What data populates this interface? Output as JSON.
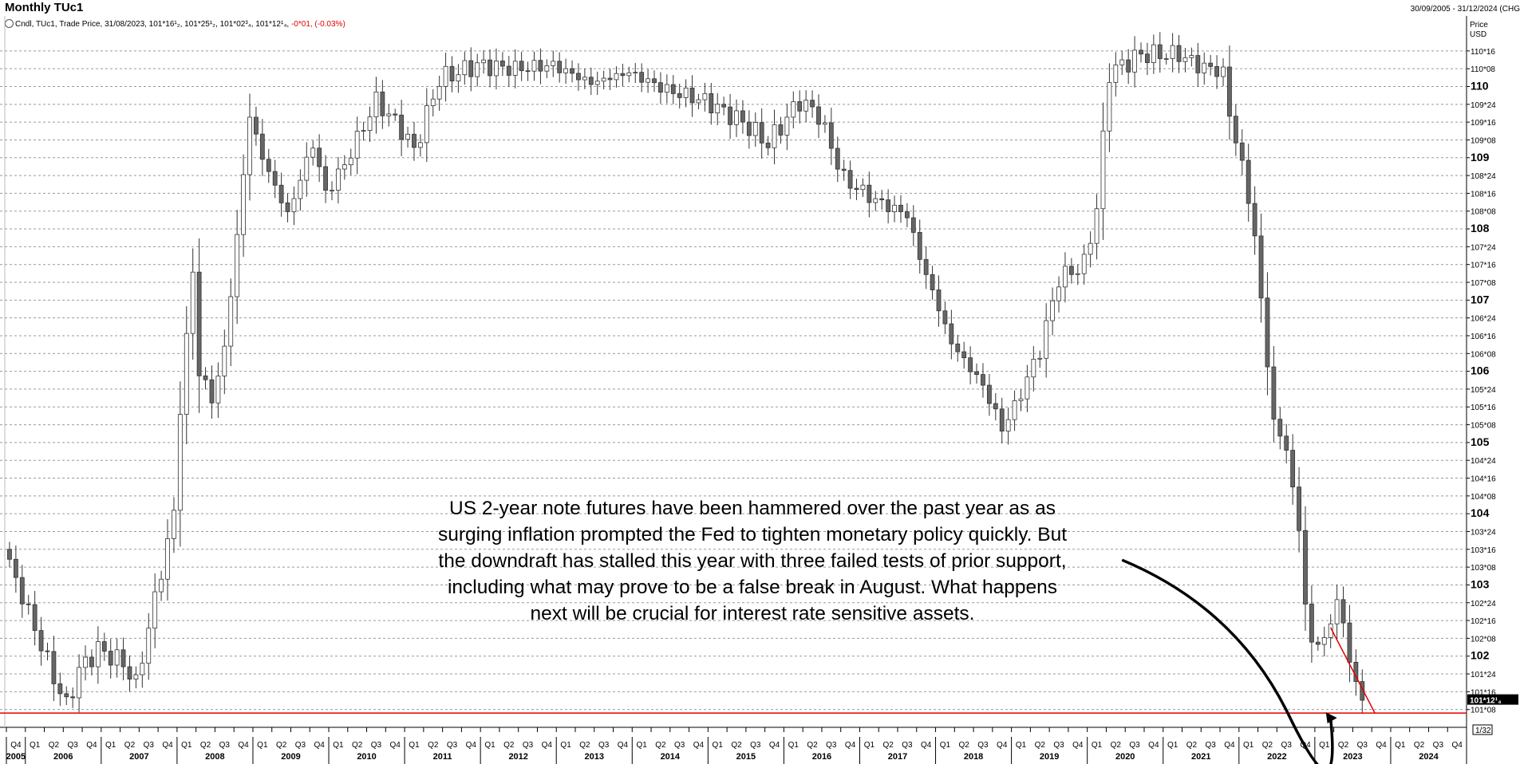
{
  "header": {
    "title": "Monthly TUc1",
    "date_range": "30/09/2005 - 31/12/2024 (CHG",
    "info_prefix": "Cndl, TUc1, Trade Price, 31/08/2023, 101*16¹₂, 101*25¹₂, 101*02³₄, 101*12¹₄, ",
    "info_change": "-0*01, (-0.03%)"
  },
  "annotation": "US 2-year note futures have been hammered over the past year as as surging inflation prompted the Fed to tighten monetary policy quickly. But the downdraft has stalled this year with three failed tests of prior support, including what may prove to be a false break in August. What happens next will be crucial for interest rate sensitive assets.",
  "colors": {
    "up": "#ffffff",
    "down": "#666666",
    "support_line": "#e00000",
    "trend_line": "#e00000",
    "arrow": "#000000"
  },
  "chart_data": {
    "type": "candlestick",
    "frequency": "monthly",
    "y_axis": {
      "header": [
        "Price",
        "USD"
      ],
      "ticks": [
        {
          "v": 101.25,
          "label": "101*08",
          "major": false
        },
        {
          "v": 101.5,
          "label": "101*16",
          "major": false
        },
        {
          "v": 101.75,
          "label": "101*24",
          "major": false
        },
        {
          "v": 102,
          "label": "102",
          "major": true
        },
        {
          "v": 102.25,
          "label": "102*08",
          "major": false
        },
        {
          "v": 102.5,
          "label": "102*16",
          "major": false
        },
        {
          "v": 102.75,
          "label": "102*24",
          "major": false
        },
        {
          "v": 103,
          "label": "103",
          "major": true
        },
        {
          "v": 103.25,
          "label": "103*08",
          "major": false
        },
        {
          "v": 103.5,
          "label": "103*16",
          "major": false
        },
        {
          "v": 103.75,
          "label": "103*24",
          "major": false
        },
        {
          "v": 104,
          "label": "104",
          "major": true
        },
        {
          "v": 104.25,
          "label": "104*08",
          "major": false
        },
        {
          "v": 104.5,
          "label": "104*16",
          "major": false
        },
        {
          "v": 104.75,
          "label": "104*24",
          "major": false
        },
        {
          "v": 105,
          "label": "105",
          "major": true
        },
        {
          "v": 105.25,
          "label": "105*08",
          "major": false
        },
        {
          "v": 105.5,
          "label": "105*16",
          "major": false
        },
        {
          "v": 105.75,
          "label": "105*24",
          "major": false
        },
        {
          "v": 106,
          "label": "106",
          "major": true
        },
        {
          "v": 106.25,
          "label": "106*08",
          "major": false
        },
        {
          "v": 106.5,
          "label": "106*16",
          "major": false
        },
        {
          "v": 106.75,
          "label": "106*24",
          "major": false
        },
        {
          "v": 107,
          "label": "107",
          "major": true
        },
        {
          "v": 107.25,
          "label": "107*08",
          "major": false
        },
        {
          "v": 107.5,
          "label": "107*16",
          "major": false
        },
        {
          "v": 107.75,
          "label": "107*24",
          "major": false
        },
        {
          "v": 108,
          "label": "108",
          "major": true
        },
        {
          "v": 108.25,
          "label": "108*08",
          "major": false
        },
        {
          "v": 108.5,
          "label": "108*16",
          "major": false
        },
        {
          "v": 108.75,
          "label": "108*24",
          "major": false
        },
        {
          "v": 109,
          "label": "109",
          "major": true
        },
        {
          "v": 109.25,
          "label": "109*08",
          "major": false
        },
        {
          "v": 109.5,
          "label": "109*16",
          "major": false
        },
        {
          "v": 109.75,
          "label": "109*24",
          "major": false
        },
        {
          "v": 110,
          "label": "110",
          "major": true
        },
        {
          "v": 110.25,
          "label": "110*08",
          "major": false
        },
        {
          "v": 110.5,
          "label": "110*16",
          "major": false
        }
      ],
      "last_price_label": "101*12¹₄",
      "last_price": 101.385,
      "scale_note": "1/32"
    },
    "x_axis": {
      "start": "2005-10",
      "end": "2024-12",
      "quarters": [
        "Q4",
        "Q1",
        "Q2",
        "Q3",
        "Q4",
        "Q1",
        "Q2",
        "Q3",
        "Q4",
        "Q1",
        "Q2",
        "Q3",
        "Q4",
        "Q1",
        "Q2",
        "Q3",
        "Q4",
        "Q1",
        "Q2",
        "Q3",
        "Q4",
        "Q1",
        "Q2",
        "Q3",
        "Q4",
        "Q1",
        "Q2",
        "Q3",
        "Q4",
        "Q1",
        "Q2",
        "Q3",
        "Q4",
        "Q1",
        "Q2",
        "Q3",
        "Q4",
        "Q1",
        "Q2",
        "Q3",
        "Q4",
        "Q1",
        "Q2",
        "Q3",
        "Q4",
        "Q1",
        "Q2",
        "Q3",
        "Q4",
        "Q1",
        "Q2",
        "Q3",
        "Q4",
        "Q1",
        "Q2",
        "Q3",
        "Q4",
        "Q1",
        "Q2",
        "Q3",
        "Q4",
        "Q1",
        "Q2",
        "Q3",
        "Q4",
        "Q1",
        "Q2",
        "Q3",
        "Q4",
        "Q1",
        "Q2",
        "Q3",
        "Q4",
        "Q1",
        "Q2",
        "Q3",
        "Q4"
      ],
      "years": [
        "2005",
        "2006",
        "2007",
        "2008",
        "2009",
        "2010",
        "2011",
        "2012",
        "2013",
        "2014",
        "2015",
        "2016",
        "2017",
        "2018",
        "2019",
        "2020",
        "2021",
        "2022",
        "2023",
        "2024"
      ]
    },
    "ylim": [
      101.0,
      110.7
    ],
    "support_level": 101.2,
    "trend_line": {
      "from": {
        "date": "2023-03",
        "price": 102.4
      },
      "to": {
        "date": "2023-10",
        "price": 101.2
      }
    },
    "arrow": {
      "from": {
        "date": "2020-06",
        "price": 103.35
      },
      "to": {
        "date": "2023-03",
        "price": 101.1
      }
    },
    "anchors": [
      {
        "d": "2005-10",
        "p": 103.3
      },
      {
        "d": "2006-05",
        "p": 101.7
      },
      {
        "d": "2006-07",
        "p": 101.3
      },
      {
        "d": "2006-09",
        "p": 101.8
      },
      {
        "d": "2006-12",
        "p": 102.1
      },
      {
        "d": "2007-04",
        "p": 101.9
      },
      {
        "d": "2007-06",
        "p": 101.6
      },
      {
        "d": "2007-09",
        "p": 102.8
      },
      {
        "d": "2007-12",
        "p": 104.0
      },
      {
        "d": "2008-01",
        "p": 105.5
      },
      {
        "d": "2008-03",
        "p": 107.4
      },
      {
        "d": "2008-04",
        "p": 106.0
      },
      {
        "d": "2008-06",
        "p": 105.6
      },
      {
        "d": "2008-08",
        "p": 106.3
      },
      {
        "d": "2008-10",
        "p": 107.9
      },
      {
        "d": "2008-12",
        "p": 109.6
      },
      {
        "d": "2009-02",
        "p": 109.0
      },
      {
        "d": "2009-06",
        "p": 108.2
      },
      {
        "d": "2009-10",
        "p": 109.2
      },
      {
        "d": "2009-12",
        "p": 108.5
      },
      {
        "d": "2010-03",
        "p": 108.9
      },
      {
        "d": "2010-08",
        "p": 109.8
      },
      {
        "d": "2010-12",
        "p": 109.4
      },
      {
        "d": "2011-02",
        "p": 109.1
      },
      {
        "d": "2011-06",
        "p": 110.1
      },
      {
        "d": "2011-12",
        "p": 110.3
      },
      {
        "d": "2012-06",
        "p": 110.25
      },
      {
        "d": "2012-12",
        "p": 110.3
      },
      {
        "d": "2013-06",
        "p": 110.05
      },
      {
        "d": "2013-12",
        "p": 110.2
      },
      {
        "d": "2014-06",
        "p": 109.95
      },
      {
        "d": "2014-12",
        "p": 109.8
      },
      {
        "d": "2015-06",
        "p": 109.5
      },
      {
        "d": "2015-10",
        "p": 109.2
      },
      {
        "d": "2016-03",
        "p": 109.8
      },
      {
        "d": "2016-06",
        "p": 109.6
      },
      {
        "d": "2016-10",
        "p": 108.7
      },
      {
        "d": "2017-03",
        "p": 108.4
      },
      {
        "d": "2017-08",
        "p": 108.2
      },
      {
        "d": "2017-10",
        "p": 107.6
      },
      {
        "d": "2018-03",
        "p": 106.4
      },
      {
        "d": "2018-08",
        "p": 105.8
      },
      {
        "d": "2018-11",
        "p": 105.2
      },
      {
        "d": "2019-01",
        "p": 105.5
      },
      {
        "d": "2019-05",
        "p": 106.3
      },
      {
        "d": "2019-08",
        "p": 107.3
      },
      {
        "d": "2019-12",
        "p": 107.5
      },
      {
        "d": "2020-02",
        "p": 108.3
      },
      {
        "d": "2020-04",
        "p": 110.2
      },
      {
        "d": "2020-09",
        "p": 110.45
      },
      {
        "d": "2021-03",
        "p": 110.45
      },
      {
        "d": "2021-06",
        "p": 110.3
      },
      {
        "d": "2021-10",
        "p": 110.2
      },
      {
        "d": "2021-11",
        "p": 109.6
      },
      {
        "d": "2022-01",
        "p": 108.9
      },
      {
        "d": "2022-03",
        "p": 107.9
      },
      {
        "d": "2022-05",
        "p": 106.1
      },
      {
        "d": "2022-06",
        "p": 105.3
      },
      {
        "d": "2022-08",
        "p": 104.9
      },
      {
        "d": "2022-10",
        "p": 103.8
      },
      {
        "d": "2022-11",
        "p": 102.7
      },
      {
        "d": "2022-12",
        "p": 102.2
      },
      {
        "d": "2023-02",
        "p": 102.2
      },
      {
        "d": "2023-04",
        "p": 102.8
      },
      {
        "d": "2023-05",
        "p": 102.4
      },
      {
        "d": "2023-07",
        "p": 101.6
      },
      {
        "d": "2023-08",
        "p": 101.38
      }
    ]
  }
}
